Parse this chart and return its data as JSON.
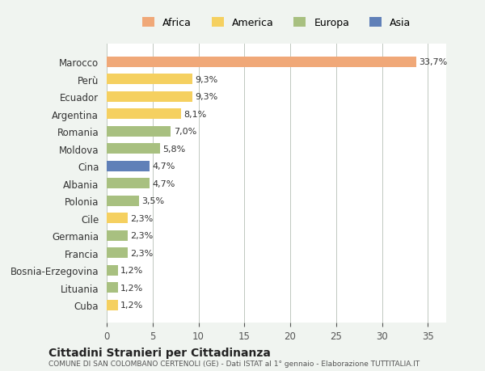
{
  "categories": [
    "Marocco",
    "Perù",
    "Ecuador",
    "Argentina",
    "Romania",
    "Moldova",
    "Cina",
    "Albania",
    "Polonia",
    "Cile",
    "Germania",
    "Francia",
    "Bosnia-Erzegovina",
    "Lituania",
    "Cuba"
  ],
  "values": [
    33.7,
    9.3,
    9.3,
    8.1,
    7.0,
    5.8,
    4.7,
    4.7,
    3.5,
    2.3,
    2.3,
    2.3,
    1.2,
    1.2,
    1.2
  ],
  "colors": [
    "#F0A878",
    "#F5D060",
    "#F5D060",
    "#F5D060",
    "#A8C080",
    "#A8C080",
    "#6080B8",
    "#A8C080",
    "#A8C080",
    "#F5D060",
    "#A8C080",
    "#A8C080",
    "#A8C080",
    "#A8C080",
    "#F5D060"
  ],
  "labels": [
    "33,7%",
    "9,3%",
    "9,3%",
    "8,1%",
    "7,0%",
    "5,8%",
    "4,7%",
    "4,7%",
    "3,5%",
    "2,3%",
    "2,3%",
    "2,3%",
    "1,2%",
    "1,2%",
    "1,2%"
  ],
  "legend": [
    {
      "label": "Africa",
      "color": "#F0A878"
    },
    {
      "label": "America",
      "color": "#F5D060"
    },
    {
      "label": "Europa",
      "color": "#A8C080"
    },
    {
      "label": "Asia",
      "color": "#6080B8"
    }
  ],
  "xlim": [
    0,
    37
  ],
  "xticks": [
    0,
    5,
    10,
    15,
    20,
    25,
    30,
    35
  ],
  "title": "Cittadini Stranieri per Cittadinanza",
  "subtitle": "COMUNE DI SAN COLOMBANO CERTENOLI (GE) - Dati ISTAT al 1° gennaio - Elaborazione TUTTITALIA.IT",
  "background_color": "#f0f4f0",
  "plot_background": "#ffffff",
  "grid_color": "#c0c8c0"
}
